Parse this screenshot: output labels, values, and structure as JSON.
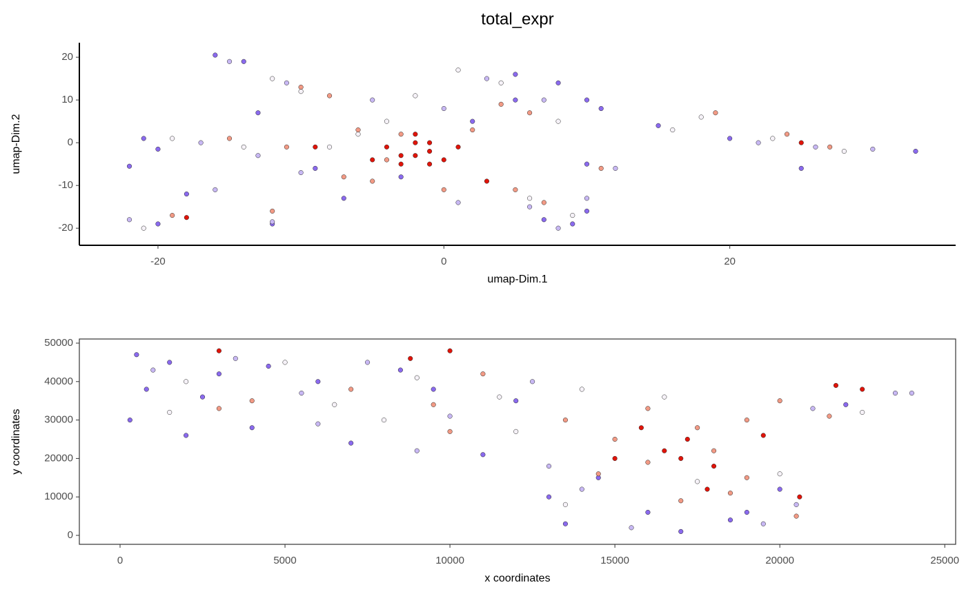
{
  "title": "total_expr",
  "chart_data": [
    {
      "type": "scatter",
      "xlabel": "umap-Dim.1",
      "ylabel": "umap-Dim.2",
      "border": false,
      "xlim": [
        -25.5,
        35.8
      ],
      "ylim": [
        -24.0,
        23.4
      ],
      "xticks": [
        -20,
        0,
        20
      ],
      "yticks": [
        -20,
        -10,
        0,
        10,
        20
      ],
      "series": [
        {
          "color": "#8a6aee",
          "x": [
            -16,
            -14,
            -21,
            -20,
            -22,
            -18,
            -13,
            -12,
            -20,
            5,
            8,
            10,
            11,
            9,
            10,
            7,
            2,
            5,
            -7,
            -3,
            20,
            25,
            33,
            15,
            -9,
            10
          ],
          "values": [
            20.5,
            19,
            1,
            -1.5,
            -5.5,
            -12,
            7,
            -19,
            -19,
            16,
            14,
            10,
            8,
            -19,
            -16,
            -18,
            5,
            10,
            -13,
            -8,
            1,
            -6,
            -2,
            4,
            -6,
            -5
          ]
        },
        {
          "color": "#c8b8f4",
          "x": [
            -15,
            -11,
            -17,
            -13,
            -22,
            -12,
            3,
            7,
            6,
            8,
            10,
            12,
            22,
            26,
            30,
            -5,
            0,
            -10,
            -16,
            1
          ],
          "values": [
            19,
            14,
            0,
            -3,
            -18,
            -18.5,
            15,
            10,
            -15,
            -20,
            -13,
            -6,
            0,
            -1,
            -1.5,
            10,
            8,
            -7,
            -11,
            -14
          ]
        },
        {
          "color": "#f6f2f8",
          "x": [
            -12,
            -10,
            -19,
            -14,
            -21,
            -4,
            1,
            4,
            8,
            6,
            9,
            18,
            23,
            28,
            16,
            -6,
            -2,
            -8
          ],
          "values": [
            15,
            12,
            1,
            -1,
            -20,
            5,
            17,
            14,
            5,
            -13,
            -17,
            6,
            1,
            -2,
            3,
            2,
            11,
            -1
          ]
        },
        {
          "color": "#f29a85",
          "x": [
            -10,
            -8,
            -15,
            -11,
            -12,
            -19,
            -6,
            -3,
            -5,
            -4,
            2,
            4,
            6,
            5,
            7,
            19,
            24,
            27,
            -7,
            0,
            11
          ],
          "values": [
            13,
            11,
            1,
            -1,
            -16,
            -17,
            3,
            2,
            -9,
            -4,
            3,
            9,
            7,
            -11,
            -14,
            7,
            2,
            -1,
            -8,
            -11,
            -6
          ]
        },
        {
          "color": "#e0140a",
          "x": [
            -2,
            -1,
            -3,
            -2,
            -4,
            1,
            -1,
            -3,
            0,
            -2,
            -1,
            -18,
            25,
            -9,
            3,
            -5
          ],
          "values": [
            -3,
            -2,
            -5,
            0,
            -1,
            -1,
            -5,
            -3,
            -4,
            2,
            0,
            -17.5,
            0,
            -1,
            -9,
            -4
          ]
        }
      ]
    },
    {
      "type": "scatter",
      "xlabel": "x coordinates",
      "ylabel": "y coordinates",
      "border": true,
      "xlim": [
        -1234,
        25330
      ],
      "ylim": [
        -2330,
        51075
      ],
      "xticks": [
        0,
        5000,
        10000,
        15000,
        20000,
        25000
      ],
      "yticks": [
        0,
        10000,
        20000,
        30000,
        40000,
        50000
      ],
      "series": [
        {
          "color": "#8a6aee",
          "x": [
            500,
            1500,
            3000,
            800,
            2500,
            4500,
            6000,
            8500,
            9500,
            300,
            4000,
            7000,
            11000,
            13000,
            13500,
            14500,
            16000,
            17000,
            20000,
            19000,
            22000,
            12000,
            18500,
            2000
          ],
          "values": [
            47000,
            45000,
            42000,
            38000,
            36000,
            44000,
            40000,
            43000,
            38000,
            30000,
            28000,
            24000,
            21000,
            10000,
            3000,
            15000,
            6000,
            1000,
            12000,
            6000,
            34000,
            35000,
            4000,
            26000
          ]
        },
        {
          "color": "#c8b8f4",
          "x": [
            1000,
            3500,
            5500,
            7500,
            10000,
            12500,
            14000,
            15500,
            13000,
            19500,
            20500,
            23500,
            24000,
            21000,
            9000,
            6000
          ],
          "values": [
            43000,
            46000,
            37000,
            45000,
            31000,
            40000,
            12000,
            2000,
            18000,
            3000,
            8000,
            37000,
            37000,
            33000,
            22000,
            29000
          ]
        },
        {
          "color": "#f6f2f8",
          "x": [
            2000,
            5000,
            6500,
            9000,
            11500,
            14000,
            16500,
            13500,
            17500,
            20000,
            22500,
            1500,
            8000,
            12000
          ],
          "values": [
            40000,
            45000,
            34000,
            41000,
            36000,
            38000,
            36000,
            8000,
            14000,
            16000,
            32000,
            32000,
            30000,
            27000
          ]
        },
        {
          "color": "#f29a85",
          "x": [
            4000,
            7000,
            9500,
            11000,
            13500,
            15000,
            16000,
            17500,
            19000,
            20000,
            21500,
            14500,
            17000,
            19000,
            20500,
            18500,
            3000,
            10000,
            16000,
            18000
          ],
          "values": [
            35000,
            38000,
            34000,
            42000,
            30000,
            25000,
            33000,
            28000,
            30000,
            35000,
            31000,
            16000,
            9000,
            15000,
            5000,
            11000,
            33000,
            27000,
            19000,
            22000
          ]
        },
        {
          "color": "#e0140a",
          "x": [
            16500,
            17200,
            18000,
            15800,
            19500,
            17800,
            21700,
            22500,
            8800,
            3000,
            10000,
            15000,
            17000,
            20600
          ],
          "values": [
            22000,
            25000,
            18000,
            28000,
            26000,
            12000,
            39000,
            38000,
            46000,
            48000,
            48000,
            20000,
            20000,
            10000
          ]
        }
      ]
    }
  ]
}
